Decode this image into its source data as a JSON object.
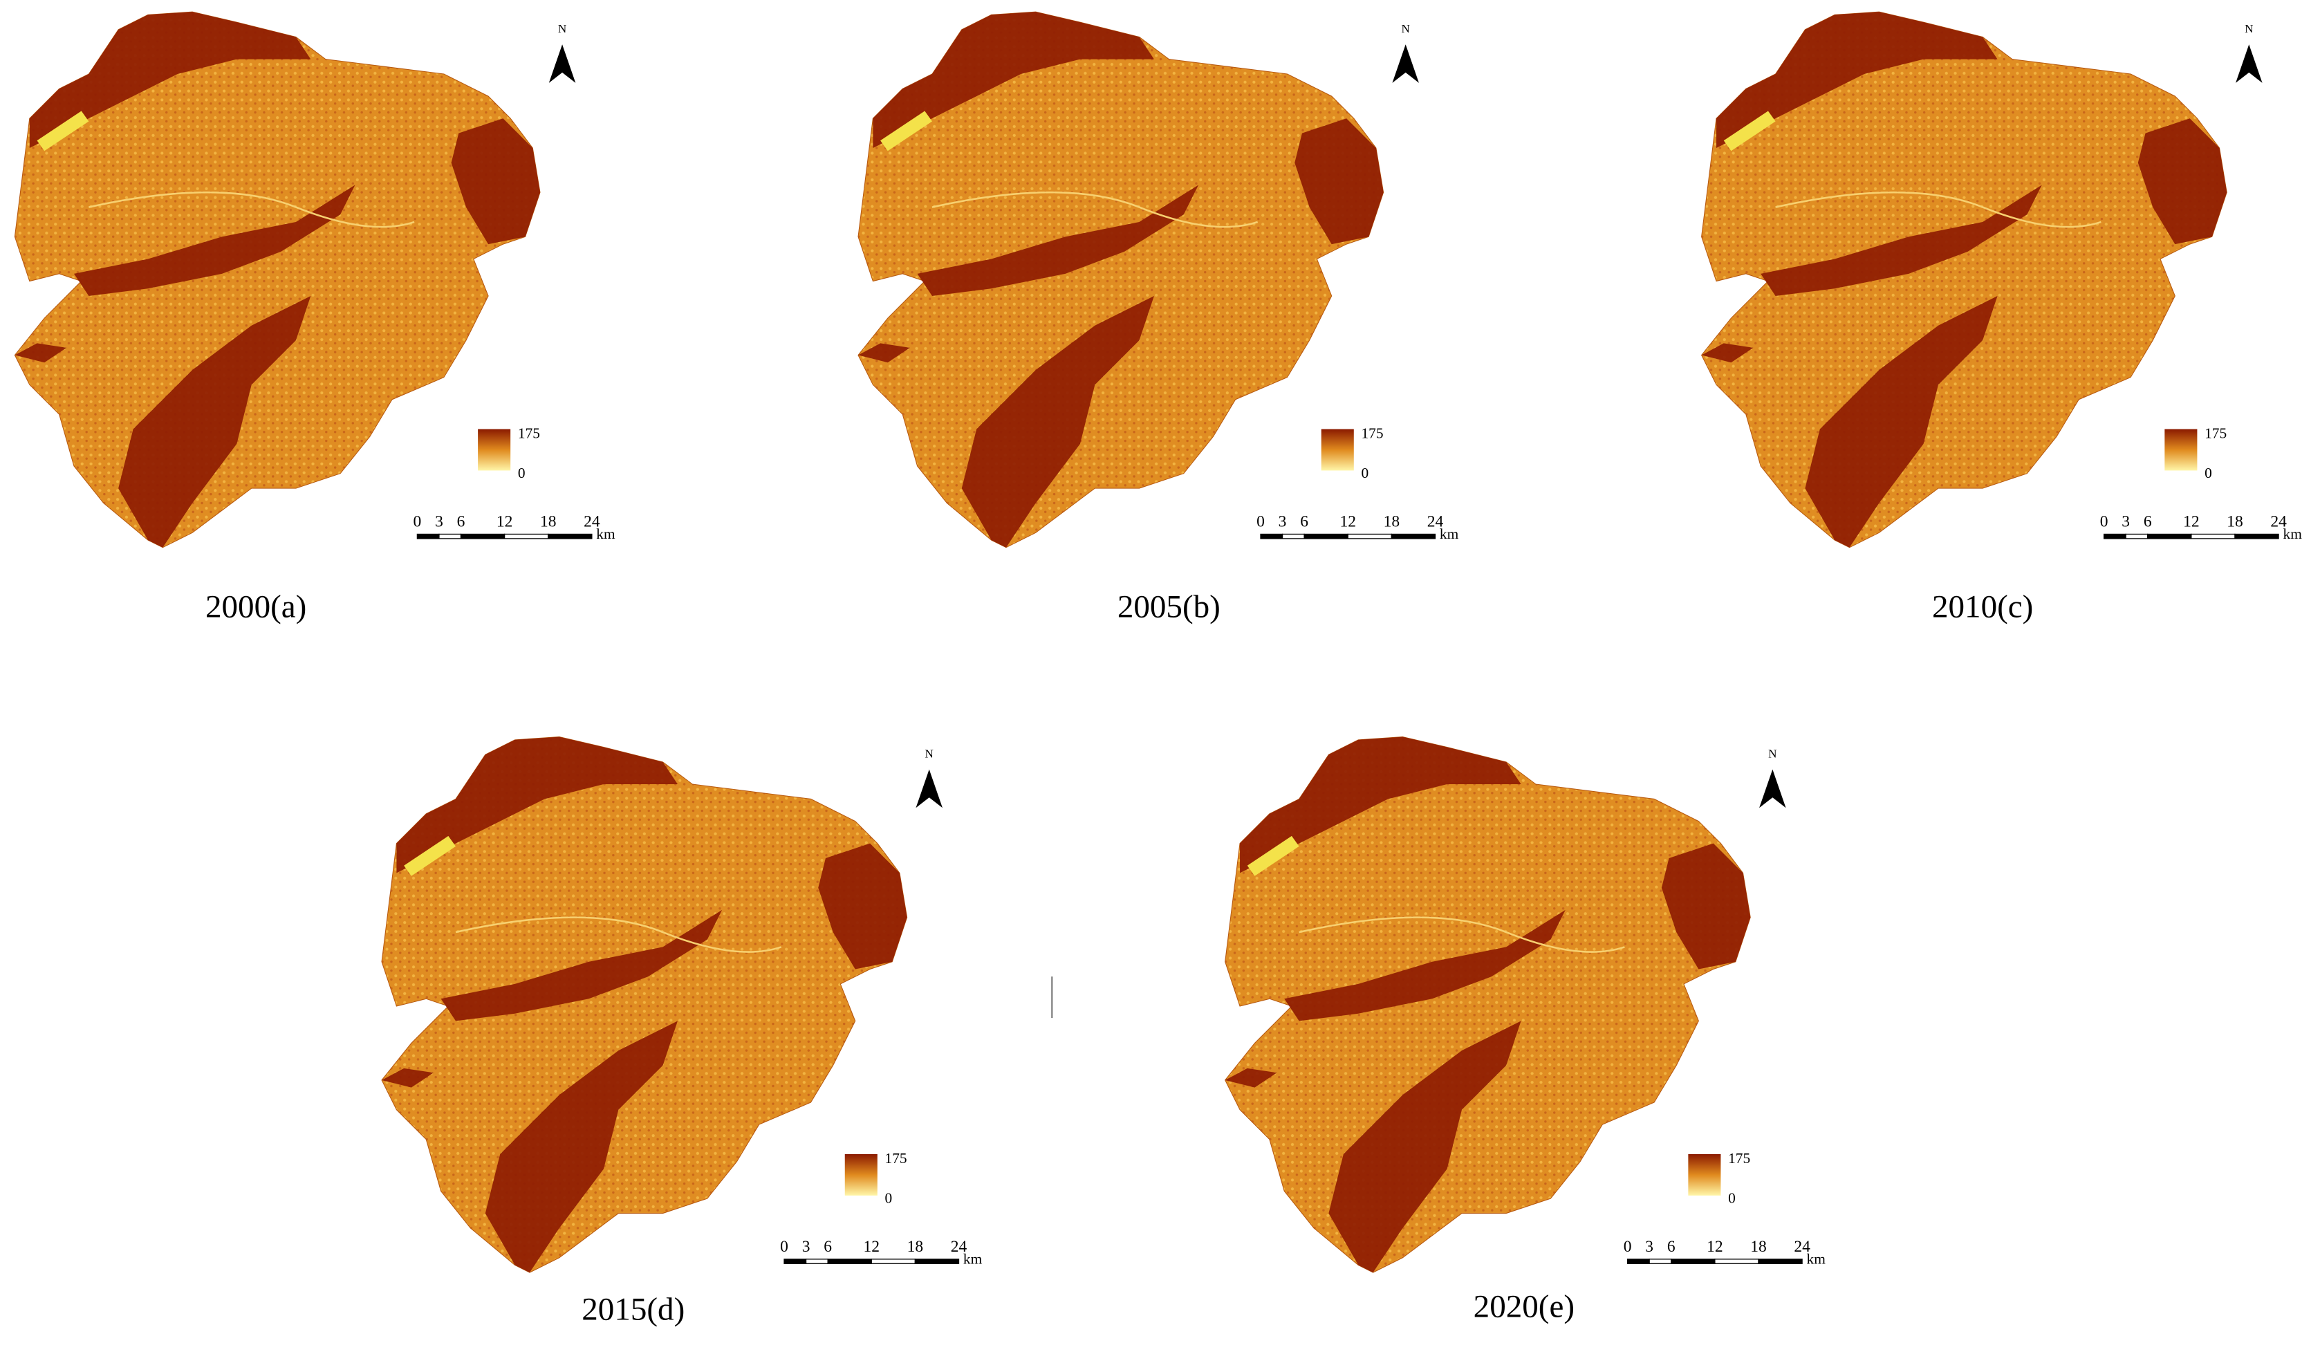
{
  "panels": [
    {
      "caption": "2000(a)",
      "north": "N",
      "legend": {
        "max": 175,
        "min": 0
      },
      "scale": {
        "ticks": [
          0,
          3,
          6,
          12,
          18,
          24
        ],
        "unit": "km"
      }
    },
    {
      "caption": "2005(b)",
      "north": "N",
      "legend": {
        "max": 175,
        "min": 0
      },
      "scale": {
        "ticks": [
          0,
          3,
          6,
          12,
          18,
          24
        ],
        "unit": "km"
      }
    },
    {
      "caption": "2010(c)",
      "north": "N",
      "legend": {
        "max": 175,
        "min": 0
      },
      "scale": {
        "ticks": [
          0,
          3,
          6,
          12,
          18,
          24
        ],
        "unit": "km"
      }
    },
    {
      "caption": "2015(d)",
      "north": "N",
      "legend": {
        "max": 175,
        "min": 0
      },
      "scale": {
        "ticks": [
          0,
          3,
          6,
          12,
          18,
          24
        ],
        "unit": "km"
      }
    },
    {
      "caption": "2020(e)",
      "north": "N",
      "legend": {
        "max": 175,
        "min": 0
      },
      "scale": {
        "ticks": [
          0,
          3,
          6,
          12,
          18,
          24
        ],
        "unit": "km"
      }
    }
  ]
}
